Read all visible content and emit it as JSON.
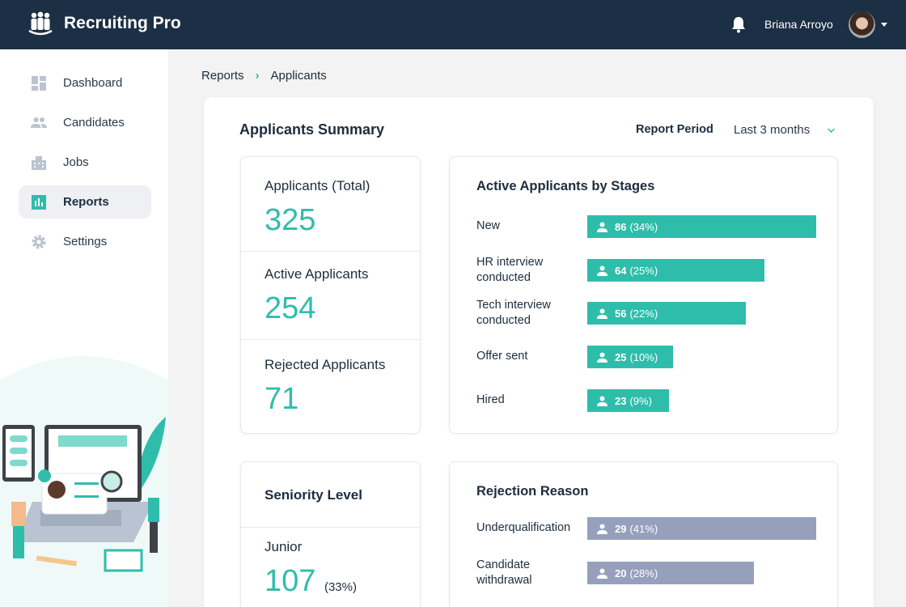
{
  "app": {
    "title": "Recruiting Pro",
    "user": "Briana Arroyo"
  },
  "colors": {
    "accent": "#2fbdab",
    "header": "#1b2f45",
    "rejection_bar": "#96a0bd"
  },
  "sidebar": {
    "items": [
      {
        "label": "Dashboard",
        "icon": "dashboard-icon"
      },
      {
        "label": "Candidates",
        "icon": "people-icon"
      },
      {
        "label": "Jobs",
        "icon": "building-icon"
      },
      {
        "label": "Reports",
        "icon": "bar-chart-icon",
        "active": true
      },
      {
        "label": "Settings",
        "icon": "gear-icon"
      }
    ]
  },
  "breadcrumb": {
    "parent": "Reports",
    "current": "Applicants"
  },
  "summary": {
    "title": "Applicants Summary",
    "period_label": "Report Period",
    "period_value": "Last 3 months",
    "stats": [
      {
        "label": "Applicants (Total)",
        "value": "325"
      },
      {
        "label": "Active Applicants",
        "value": "254"
      },
      {
        "label": "Rejected Applicants",
        "value": "71"
      }
    ]
  },
  "stages": {
    "title": "Active Applicants by Stages",
    "rows": [
      {
        "label": "New",
        "count": 86,
        "count_text": "86",
        "pct": "(34%)"
      },
      {
        "label": "HR interview conducted",
        "count": 64,
        "count_text": "64",
        "pct": "(25%)"
      },
      {
        "label": "Tech interview conducted",
        "count": 56,
        "count_text": "56",
        "pct": "(22%)"
      },
      {
        "label": "Offer sent",
        "count": 25,
        "count_text": "25",
        "pct": "(10%)"
      },
      {
        "label": "Hired",
        "count": 23,
        "count_text": "23",
        "pct": "(9%)"
      }
    ]
  },
  "seniority": {
    "title": "Seniority Level",
    "items": [
      {
        "label": "Junior",
        "value": "107",
        "pct": "(33%)"
      }
    ]
  },
  "rejection": {
    "title": "Rejection Reason",
    "rows": [
      {
        "label": "Underqualification",
        "count": 29,
        "count_text": "29",
        "pct": "(41%)"
      },
      {
        "label": "Candidate withdrawal",
        "count": 20,
        "count_text": "20",
        "pct": "(28%)"
      }
    ]
  }
}
